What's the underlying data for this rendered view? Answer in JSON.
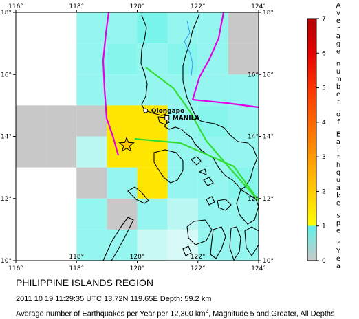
{
  "map": {
    "lon_ticks": [
      "116°",
      "118°",
      "120°",
      "122°",
      "124°"
    ],
    "lat_ticks": [
      "18°",
      "16°",
      "14°",
      "12°",
      "10°"
    ],
    "places": [
      {
        "name": "Olongapo",
        "lon": 120.28,
        "lat": 14.83
      },
      {
        "name": "MANILA",
        "lon": 120.98,
        "lat": 14.6
      }
    ],
    "epicenter": {
      "lon": 119.65,
      "lat": 13.72,
      "marker": "star-icon",
      "color": "#ffcc00"
    },
    "colors": {
      "water": "#ffffff",
      "plate_boundary": "#e600e6",
      "fault": "#33dd33",
      "coastline": "#000000",
      "river": "#3399ff"
    },
    "rate_cells": [
      {
        "lon": 116.5,
        "lat": 14.5,
        "rate": 0
      },
      {
        "lon": 117.5,
        "lat": 14.5,
        "rate": 0
      },
      {
        "lon": 118.5,
        "lat": 14.5,
        "rate": 0
      },
      {
        "lon": 116.5,
        "lat": 13.5,
        "rate": 0
      },
      {
        "lon": 117.5,
        "lat": 13.5,
        "rate": 0
      },
      {
        "lon": 118.5,
        "lat": 13.5,
        "rate": 0.3
      },
      {
        "lon": 118.5,
        "lat": 12.5,
        "rate": 0
      },
      {
        "lon": 119.5,
        "lat": 11.5,
        "rate": 0
      },
      {
        "lon": 119.5,
        "lat": 12.5,
        "rate": 0.6
      },
      {
        "lon": 120.5,
        "lat": 10.5,
        "rate": 0.2
      },
      {
        "lon": 121.5,
        "lat": 10.5,
        "rate": 0.1
      },
      {
        "lon": 121.5,
        "lat": 11.5,
        "rate": 0.3
      },
      {
        "lon": 123.5,
        "lat": 16.5,
        "rate": 0
      },
      {
        "lon": 123.5,
        "lat": 17.5,
        "rate": 0
      },
      {
        "lon": 119.5,
        "lat": 14.5,
        "rate": 1.5
      },
      {
        "lon": 119.5,
        "lat": 13.5,
        "rate": 1.5
      },
      {
        "lon": 120.5,
        "lat": 14.5,
        "rate": 1.5
      },
      {
        "lon": 120.5,
        "lat": 13.5,
        "rate": 1.5
      },
      {
        "lon": 120.5,
        "lat": 12.5,
        "rate": 1.5
      },
      {
        "lon": 119.5,
        "lat": 16.5,
        "rate": 0.7
      },
      {
        "lon": 120.5,
        "lat": 17.5,
        "rate": 0.8
      },
      {
        "lon": 121.5,
        "lat": 16.5,
        "rate": 0.7
      },
      {
        "lon": 122.5,
        "lat": 14.5,
        "rate": 0.7
      },
      {
        "lon": 122.5,
        "lat": 11.5,
        "rate": 0.6
      },
      {
        "lon": 123.5,
        "lat": 12.5,
        "rate": 0.7
      }
    ],
    "colorbar": {
      "ticks": [
        "7",
        "6",
        "5",
        "4",
        "3",
        "2",
        "1",
        "0"
      ],
      "label_letters": [
        "A",
        "v",
        "e",
        "r",
        "a",
        "g",
        "e",
        "n",
        "u",
        "m",
        "b",
        "e",
        "r",
        "o",
        "f",
        "E",
        "a",
        "r",
        "t",
        "h",
        "q",
        "u",
        "a",
        "k",
        "e",
        "s",
        "p",
        "e",
        "r",
        "Y",
        "e",
        "a",
        "r"
      ],
      "stops": [
        {
          "v": 0,
          "color": "#c8c8c8"
        },
        {
          "v": 1,
          "color": "#5ef2e6"
        },
        {
          "v": 1.01,
          "color": "#ffff00"
        },
        {
          "v": 2,
          "color": "#ffcc00"
        },
        {
          "v": 3,
          "color": "#ff9900"
        },
        {
          "v": 4,
          "color": "#ff6600"
        },
        {
          "v": 5,
          "color": "#ff3300"
        },
        {
          "v": 6,
          "color": "#e60000"
        },
        {
          "v": 7,
          "color": "#b30000"
        }
      ]
    }
  },
  "caption": {
    "title": "PHILIPPINE ISLANDS REGION",
    "event": "2011 10 19 11:29:35 UTC 13.72N 119.65E Depth: 59.2 km",
    "avg_pre": "Average number of Earthquakes per Year per 12,300 km",
    "avg_sup": "2",
    "avg_post": ", Magnitude 5 and Greater, All Depths"
  }
}
